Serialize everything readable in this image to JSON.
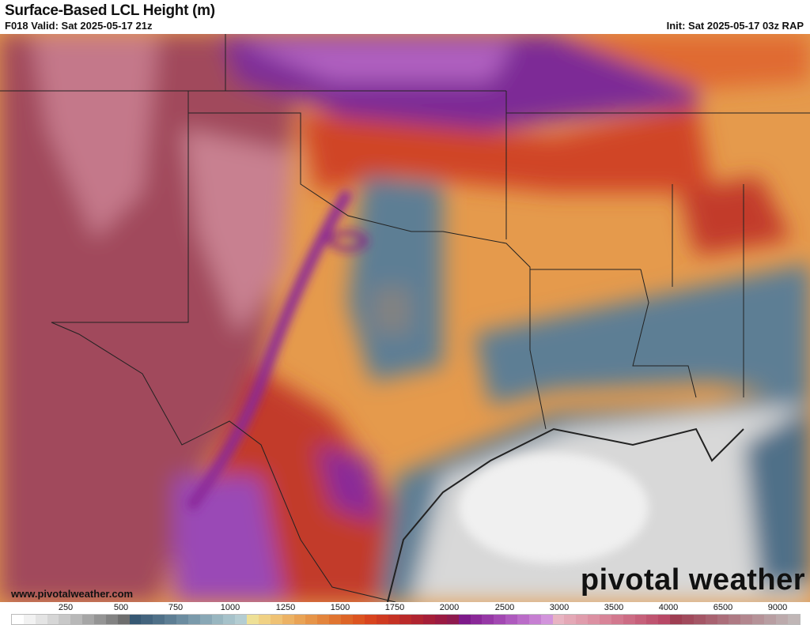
{
  "header": {
    "title": "Surface-Based LCL Height (m)",
    "valid": "F018 Valid: Sat 2025-05-17 21z",
    "init": "Init: Sat 2025-05-17 03z RAP"
  },
  "map": {
    "website": "www.pivotalweather.com",
    "logo": "pivotal weather"
  },
  "colorbar": {
    "labels": [
      "250",
      "500",
      "750",
      "1000",
      "1250",
      "1500",
      "1750",
      "2000",
      "2500",
      "3000",
      "3500",
      "4000",
      "6500",
      "9000"
    ],
    "colors": [
      "#ffffff",
      "#f2f2f2",
      "#e4e4e4",
      "#d6d6d6",
      "#c8c8c8",
      "#b8b8b8",
      "#a6a6a6",
      "#949494",
      "#828282",
      "#6e6e6e",
      "#365873",
      "#43647e",
      "#4f7088",
      "#5d7e94",
      "#6b8ca0",
      "#7a9aab",
      "#89a8b6",
      "#98b6c0",
      "#a6c2ca",
      "#b4cdd2",
      "#eee096",
      "#f0d184",
      "#efc274",
      "#ecb264",
      "#e9a355",
      "#e69448",
      "#e3843c",
      "#e07430",
      "#dd6426",
      "#dc5420",
      "#d8441e",
      "#cf3a20",
      "#c53224",
      "#ba2a2a",
      "#b02430",
      "#a51e38",
      "#9a1a42",
      "#8e1a4e",
      "#7d1a8a",
      "#8a2898",
      "#9638a6",
      "#a248b2",
      "#ae5abe",
      "#ba6cc8",
      "#c67fd2",
      "#d294dc",
      "#e8b4c2",
      "#e4a8b6",
      "#e09cac",
      "#dc90a2",
      "#d88498",
      "#d2788e",
      "#cc6c84",
      "#c6607a",
      "#bf5470",
      "#b84866",
      "#9e3e52",
      "#a14a5c",
      "#a45666",
      "#a86270",
      "#ab6e7a",
      "#ae7a84",
      "#b2868e",
      "#b59298",
      "#b89ea2",
      "#bcaaac",
      "#c0b6b6"
    ]
  }
}
